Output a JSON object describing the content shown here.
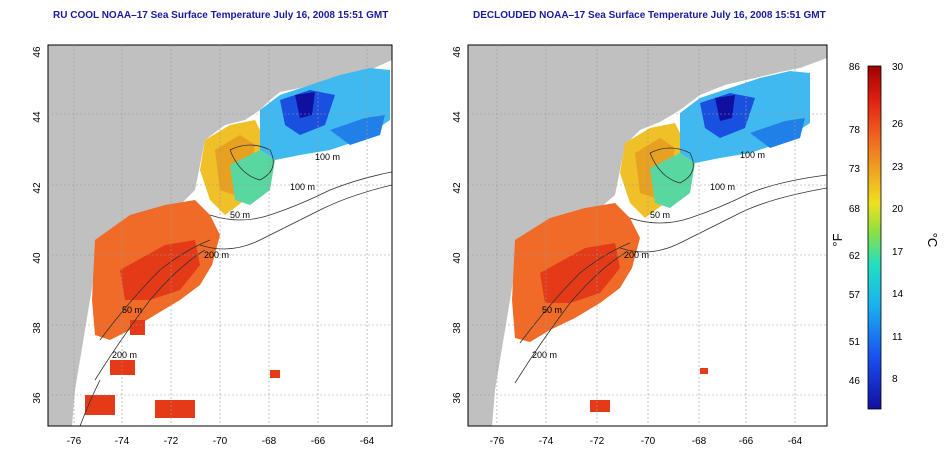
{
  "maps": [
    {
      "title": "RU COOL NOAA–17 Sea Surface Temperature July 16, 2008 15:51 GMT",
      "contour_labels": [
        "100 m",
        "100 m",
        "50 m",
        "200 m",
        "50 m",
        "200 m"
      ]
    },
    {
      "title": "DECLOUDED NOAA–17 Sea Surface Temperature July 16, 2008 15:51 GMT",
      "contour_labels": [
        "100 m",
        "100 m",
        "50 m",
        "200 m",
        "50 m",
        "200 m"
      ]
    }
  ],
  "axes": {
    "lat_ticks": [
      "46",
      "44",
      "42",
      "40",
      "38",
      "36"
    ],
    "lon_ticks": [
      "-76",
      "-74",
      "-72",
      "-70",
      "-68",
      "-66",
      "-64"
    ]
  },
  "colorbar": {
    "fahrenheit_ticks": [
      "86",
      "78",
      "73",
      "68",
      "62",
      "57",
      "51",
      "46"
    ],
    "celsius_ticks": [
      "30",
      "26",
      "23",
      "20",
      "17",
      "14",
      "11",
      "8"
    ],
    "f_unit": "°F",
    "c_unit": "°C"
  },
  "colors": {
    "title": "#1a1aa0",
    "land": "#c0c0c0",
    "ocean": "#ffffff"
  }
}
